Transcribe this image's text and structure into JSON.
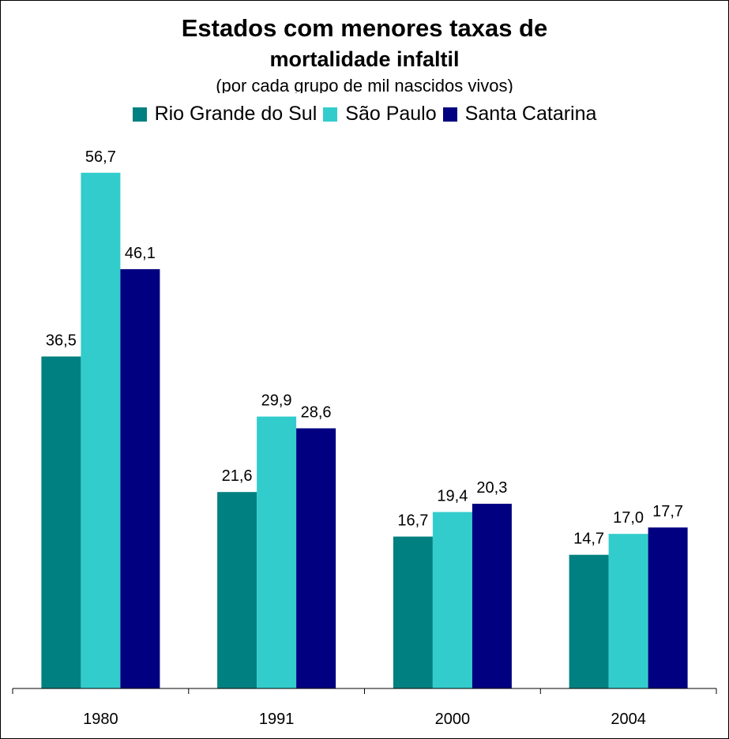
{
  "chart_data": {
    "type": "bar",
    "title_line1": "Estados com menores taxas de",
    "title_line2": "mortalidade infaltil",
    "subtitle": "(por cada grupo de mil nascidos vivos)",
    "categories": [
      "1980",
      "1991",
      "2000",
      "2004"
    ],
    "series": [
      {
        "name": "Rio Grande do Sul",
        "color": "#008080",
        "values": [
          36.5,
          21.6,
          16.7,
          14.7
        ],
        "labels": [
          "36,5",
          "21,6",
          "16,7",
          "14,7"
        ]
      },
      {
        "name": "São Paulo",
        "color": "#33CCCC",
        "values": [
          56.7,
          29.9,
          19.4,
          17.0
        ],
        "labels": [
          "56,7",
          "29,9",
          "19,4",
          "17,0"
        ]
      },
      {
        "name": "Santa Catarina",
        "color": "#000080",
        "values": [
          46.1,
          28.6,
          20.3,
          17.7
        ],
        "labels": [
          "46,1",
          "28,6",
          "20,3",
          "17,7"
        ]
      }
    ],
    "ylim": [
      0,
      60
    ],
    "grid": false,
    "legend_position": "top"
  }
}
